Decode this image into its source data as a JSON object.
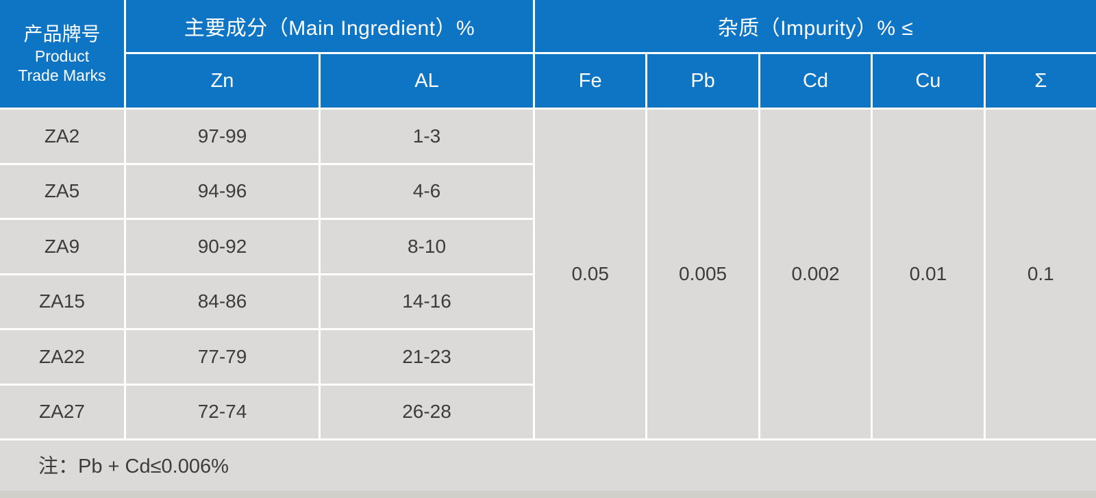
{
  "table": {
    "header": {
      "product_trade_marks": {
        "zh": "产品牌号",
        "en_line1": "Product",
        "en_line2": "Trade Marks"
      },
      "main_ingredient": {
        "label": "主要成分（Main Ingredient）%",
        "columns": [
          "Zn",
          "AL"
        ]
      },
      "impurity": {
        "label": "杂质（Impurity）% ≤",
        "columns": [
          "Fe",
          "Pb",
          "Cd",
          "Cu",
          "Σ"
        ]
      }
    },
    "rows": [
      {
        "trade_mark": "ZA2",
        "zn": "97-99",
        "al": "1-3"
      },
      {
        "trade_mark": "ZA5",
        "zn": "94-96",
        "al": "4-6"
      },
      {
        "trade_mark": "ZA9",
        "zn": "90-92",
        "al": "8-10"
      },
      {
        "trade_mark": "ZA15",
        "zn": "84-86",
        "al": "14-16"
      },
      {
        "trade_mark": "ZA22",
        "zn": "77-79",
        "al": "21-23"
      },
      {
        "trade_mark": "ZA27",
        "zn": "72-74",
        "al": "26-28"
      }
    ],
    "impurity_limits": [
      "0.05",
      "0.005",
      "0.002",
      "0.01",
      "0.1"
    ],
    "note": "注：Pb + Cd≤0.006%"
  },
  "colors": {
    "header-blue": "#0e75c5",
    "cell-gray": "#dbdad8",
    "strip-gray": "#d1cfc9",
    "text-dark": "#3c3c3c",
    "line-white": "#ffffff"
  }
}
